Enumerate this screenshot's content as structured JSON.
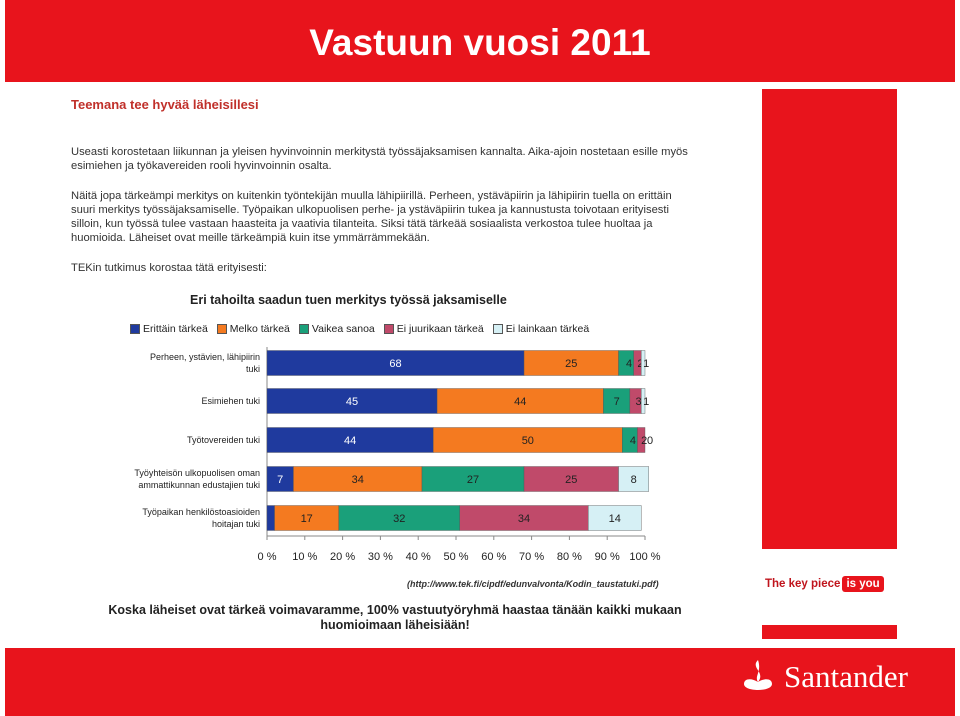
{
  "slide": {
    "title": "Vastuun vuosi 2011",
    "heading": "Teemana tee hyvää läheisillesi",
    "paragraph1": "Useasti korostetaan liikunnan ja yleisen hyvinvoinnin merkitystä työssäjaksamisen kannalta. Aika-ajoin nostetaan esille myös esimiehen ja työkavereiden rooli hyvinvoinnin osalta.",
    "paragraph2": "Näitä jopa tärkeämpi merkitys on kuitenkin työntekijän muulla lähipiirillä. Perheen, ystäväpiirin ja lähipiirin tuella on erittäin suuri merkitys työssäjaksamiselle. Työpaikan ulkopuolisen perhe- ja ystäväpiirin tukea ja kannustusta toivotaan erityisesti silloin, kun työssä tulee vastaan haasteita ja vaativia tilanteita. Siksi tätä tärkeää sosiaalista verkostoa tulee huoltaa ja huomioida. Läheiset ovat meille tärkeämpiä kuin itse ymmärrämmekään.",
    "paragraph3": "TEKin tutkimus korostaa tätä erityisesti:",
    "source": "(http://www.tek.fi/cipdf/edunvalvonta/Kodin_taustatuki.pdf)",
    "conclusion": "Koska läheiset ovat tärkeä voimavaramme, 100% vastuutyöryhmä haastaa tänään kaikki mukaan huomioimaan läheisiään!",
    "keypiece_text": "The key piece",
    "keypiece_badge": "is you",
    "brand_name": "Santander",
    "colors": {
      "brand_red": "#e8141c"
    }
  },
  "chart_data": {
    "type": "bar",
    "orientation": "horizontal",
    "stacked": true,
    "title": "Eri tahoilta saadun tuen merkitys työssä jaksamiselle",
    "categories": [
      "Perheen, ystävien, lähipiirin tuki",
      "Esimiehen tuki",
      "Työtovereiden tuki",
      "Työyhteisön ulkopuolisen oman ammattikunnan edustajien tuki",
      "Työpaikan henkilöstoasioiden hoitajan tuki"
    ],
    "series": [
      {
        "name": "Erittäin tärkeä",
        "color": "#1f3a9e",
        "values": [
          68,
          45,
          44,
          7,
          2
        ],
        "labels": [
          "68",
          "45",
          "44",
          "7",
          ""
        ]
      },
      {
        "name": "Melko tärkeä",
        "color": "#f47a20",
        "values": [
          25,
          44,
          50,
          34,
          17
        ],
        "labels": [
          "25",
          "44",
          "50",
          "34",
          "17"
        ]
      },
      {
        "name": "Vaikea sanoa",
        "color": "#1aa07a",
        "values": [
          4,
          7,
          4,
          27,
          32
        ],
        "labels": [
          "4",
          "7",
          "4",
          "27",
          "32"
        ]
      },
      {
        "name": "Ei juurikaan tärkeä",
        "color": "#c04a6a",
        "values": [
          2,
          3,
          2,
          25,
          34
        ],
        "labels": [
          "2",
          "3",
          "2",
          "25",
          "34"
        ]
      },
      {
        "name": "Ei lainkaan tärkeä",
        "color": "#d6f0f5",
        "values": [
          1,
          1,
          0,
          8,
          14
        ],
        "labels": [
          "1",
          "1",
          "0",
          "8",
          "14"
        ]
      }
    ],
    "xticks": [
      "0 %",
      "10 %",
      "20 %",
      "30 %",
      "40 %",
      "50 %",
      "60 %",
      "70 %",
      "80 %",
      "90 %",
      "100 %"
    ],
    "xlim": [
      0,
      100
    ],
    "grid": false,
    "legend_position": "top"
  }
}
